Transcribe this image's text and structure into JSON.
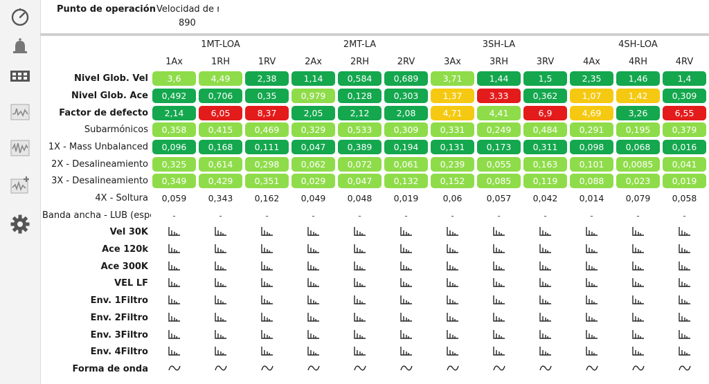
{
  "header": {
    "label": "Punto de operación",
    "column_title": "Velocidad de rc",
    "column_value": "890"
  },
  "sidebar": {
    "icons": [
      "gauge-icon",
      "bell-icon",
      "film-icon",
      "spectrum-icon",
      "waveform-icon",
      "waveform-add-icon",
      "gear-icon"
    ]
  },
  "colors": {
    "dark_green": "#14a74e",
    "light_green": "#8fdc4a",
    "yellow": "#f5c911",
    "red": "#e41b1b"
  },
  "groups": [
    "1MT-LOA",
    "2MT-LA",
    "3SH-LA",
    "4SH-LOA"
  ],
  "columns": [
    "1Ax",
    "1RH",
    "1RV",
    "2Ax",
    "2RH",
    "2RV",
    "3Ax",
    "3RH",
    "3RV",
    "4Ax",
    "4RH",
    "4RV"
  ],
  "rows": [
    {
      "label": "Nivel Glob. Vel",
      "bold": true,
      "values": [
        "3,6",
        "4,49",
        "2,38",
        "1,14",
        "0,584",
        "0,689",
        "3,71",
        "1,44",
        "1,5",
        "2,35",
        "1,46",
        "1,4"
      ],
      "status": [
        "light",
        "light",
        "dark",
        "dark",
        "dark",
        "dark",
        "light",
        "dark",
        "dark",
        "dark",
        "dark",
        "dark"
      ]
    },
    {
      "label": "Nivel Glob. Ace",
      "bold": true,
      "values": [
        "0,492",
        "0,706",
        "0,35",
        "0,979",
        "0,128",
        "0,303",
        "1,37",
        "3,33",
        "0,362",
        "1,07",
        "1,42",
        "0,309"
      ],
      "status": [
        "dark",
        "dark",
        "dark",
        "light",
        "dark",
        "dark",
        "yellow",
        "red",
        "dark",
        "yellow",
        "yellow",
        "dark"
      ]
    },
    {
      "label": "Factor de defecto",
      "bold": true,
      "values": [
        "2,14",
        "6,05",
        "8,37",
        "2,05",
        "2,12",
        "2,08",
        "4,71",
        "4,41",
        "6,9",
        "4,69",
        "3,26",
        "6,55"
      ],
      "status": [
        "dark",
        "red",
        "red",
        "dark",
        "dark",
        "dark",
        "yellow",
        "light",
        "red",
        "yellow",
        "dark",
        "red"
      ]
    },
    {
      "label": "Subarmónicos",
      "bold": false,
      "values": [
        "0,358",
        "0,415",
        "0,469",
        "0,329",
        "0,533",
        "0,309",
        "0,331",
        "0,249",
        "0,484",
        "0,291",
        "0,195",
        "0,379"
      ],
      "status": [
        "light",
        "light",
        "light",
        "light",
        "light",
        "light",
        "light",
        "light",
        "light",
        "light",
        "light",
        "light"
      ]
    },
    {
      "label": "1X - Mass Unbalanced",
      "bold": false,
      "values": [
        "0,096",
        "0,168",
        "0,111",
        "0,047",
        "0,389",
        "0,194",
        "0,131",
        "0,173",
        "0,311",
        "0,098",
        "0,068",
        "0,016"
      ],
      "status": [
        "dark",
        "dark",
        "dark",
        "dark",
        "dark",
        "dark",
        "dark",
        "dark",
        "dark",
        "dark",
        "dark",
        "dark"
      ]
    },
    {
      "label": "2X - Desalineamiento",
      "bold": false,
      "values": [
        "0,325",
        "0,614",
        "0,298",
        "0,062",
        "0,072",
        "0,061",
        "0,239",
        "0,055",
        "0,163",
        "0,101",
        "0,0085",
        "0,041"
      ],
      "status": [
        "light",
        "light",
        "light",
        "light",
        "light",
        "light",
        "light",
        "light",
        "light",
        "light",
        "light",
        "light"
      ]
    },
    {
      "label": "3X - Desalineamiento",
      "bold": false,
      "values": [
        "0,349",
        "0,429",
        "0,351",
        "0,029",
        "0,047",
        "0,132",
        "0,152",
        "0,085",
        "0,119",
        "0,088",
        "0,023",
        "0,019"
      ],
      "status": [
        "light",
        "light",
        "light",
        "light",
        "light",
        "light",
        "light",
        "light",
        "light",
        "light",
        "light",
        "light"
      ]
    },
    {
      "label": "4X - Soltura",
      "bold": false,
      "values": [
        "0,059",
        "0,343",
        "0,162",
        "0,049",
        "0,048",
        "0,019",
        "0,06",
        "0,057",
        "0,042",
        "0,014",
        "0,079",
        "0,058"
      ],
      "status": [
        "none",
        "none",
        "none",
        "none",
        "none",
        "none",
        "none",
        "none",
        "none",
        "none",
        "none",
        "none"
      ]
    },
    {
      "label": "Banda ancha - LUB (espec",
      "bold": false,
      "left": true,
      "values": [
        "-",
        "-",
        "-",
        "-",
        "-",
        "-",
        "-",
        "-",
        "-",
        "-",
        "-",
        "-"
      ],
      "status": [
        "dash",
        "dash",
        "dash",
        "dash",
        "dash",
        "dash",
        "dash",
        "dash",
        "dash",
        "dash",
        "dash",
        "dash"
      ]
    }
  ],
  "plot_rows": [
    {
      "label": "Vel 30K",
      "icon": "spectrum-plot-icon"
    },
    {
      "label": "Ace 120k",
      "icon": "spectrum-plot-icon"
    },
    {
      "label": "Ace 300K",
      "icon": "spectrum-plot-icon"
    },
    {
      "label": "VEL  LF",
      "icon": "spectrum-plot-icon"
    },
    {
      "label": "Env. 1Filtro",
      "icon": "spectrum-plot-icon"
    },
    {
      "label": "Env. 2Filtro",
      "icon": "spectrum-plot-icon"
    },
    {
      "label": "Env. 3Filtro",
      "icon": "spectrum-plot-icon"
    },
    {
      "label": "Env. 4Filtro",
      "icon": "spectrum-plot-icon"
    },
    {
      "label": "Forma de onda",
      "icon": "waveform-plot-icon"
    }
  ]
}
